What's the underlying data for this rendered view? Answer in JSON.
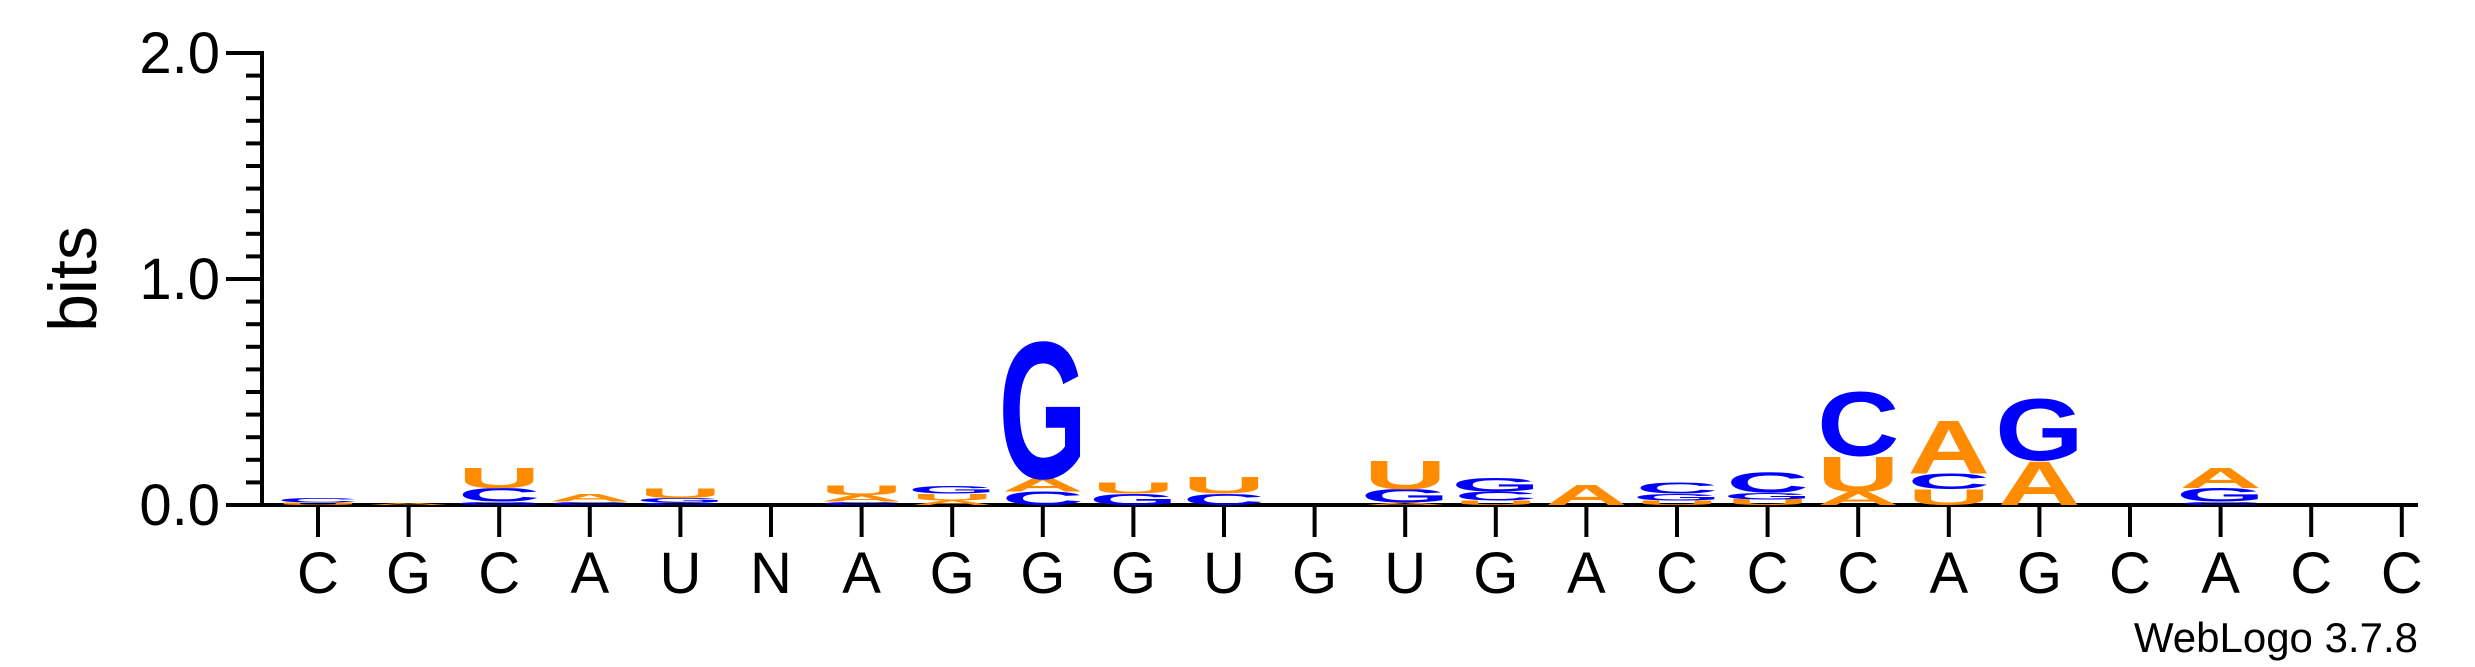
{
  "colors": {
    "A": "#ff8c00",
    "U": "#ff8c00",
    "C": "#0000ff",
    "G": "#0000ff",
    "axis": "#000000"
  },
  "credit": "WebLogo 3.7.8",
  "chart_data": {
    "type": "sequence-logo",
    "ylabel": "bits",
    "ylim": [
      0,
      2
    ],
    "yticks": [
      {
        "value": 0,
        "label": "0.0"
      },
      {
        "value": 1,
        "label": "1.0"
      },
      {
        "value": 2,
        "label": "2.0"
      }
    ],
    "positions": [
      {
        "label": "C",
        "stack": [
          {
            "letter": "U",
            "bits": 0.012
          },
          {
            "letter": "C",
            "bits": 0.02
          }
        ]
      },
      {
        "label": "G",
        "stack": [
          {
            "letter": "A",
            "bits": 0.008
          }
        ]
      },
      {
        "label": "C",
        "stack": [
          {
            "letter": "G",
            "bits": 0.015
          },
          {
            "letter": "C",
            "bits": 0.06
          },
          {
            "letter": "U",
            "bits": 0.09
          }
        ]
      },
      {
        "label": "A",
        "stack": [
          {
            "letter": "C",
            "bits": 0.015
          },
          {
            "letter": "A",
            "bits": 0.035
          }
        ]
      },
      {
        "label": "U",
        "stack": [
          {
            "letter": "C",
            "bits": 0.012
          },
          {
            "letter": "G",
            "bits": 0.02
          },
          {
            "letter": "U",
            "bits": 0.045
          }
        ]
      },
      {
        "label": "N",
        "stack": []
      },
      {
        "label": "A",
        "stack": [
          {
            "letter": "C",
            "bits": 0.015
          },
          {
            "letter": "A",
            "bits": 0.03
          },
          {
            "letter": "U",
            "bits": 0.045
          }
        ]
      },
      {
        "label": "G",
        "stack": [
          {
            "letter": "A",
            "bits": 0.02
          },
          {
            "letter": "U",
            "bits": 0.03
          },
          {
            "letter": "G",
            "bits": 0.035
          }
        ]
      },
      {
        "label": "G",
        "stack": [
          {
            "letter": "C",
            "bits": 0.06
          },
          {
            "letter": "A",
            "bits": 0.06
          },
          {
            "letter": "G",
            "bits": 0.62
          }
        ]
      },
      {
        "label": "G",
        "stack": [
          {
            "letter": "G",
            "bits": 0.05
          },
          {
            "letter": "U",
            "bits": 0.05
          }
        ]
      },
      {
        "label": "U",
        "stack": [
          {
            "letter": "C",
            "bits": 0.05
          },
          {
            "letter": "U",
            "bits": 0.075
          }
        ]
      },
      {
        "label": "G",
        "stack": []
      },
      {
        "label": "U",
        "stack": [
          {
            "letter": "A",
            "bits": 0.01
          },
          {
            "letter": "G",
            "bits": 0.06
          },
          {
            "letter": "U",
            "bits": 0.13
          }
        ]
      },
      {
        "label": "G",
        "stack": [
          {
            "letter": "U",
            "bits": 0.02
          },
          {
            "letter": "C",
            "bits": 0.04
          },
          {
            "letter": "G",
            "bits": 0.06
          }
        ]
      },
      {
        "label": "A",
        "stack": [
          {
            "letter": "A",
            "bits": 0.09
          }
        ]
      },
      {
        "label": "C",
        "stack": [
          {
            "letter": "U",
            "bits": 0.02
          },
          {
            "letter": "G",
            "bits": 0.03
          },
          {
            "letter": "C",
            "bits": 0.05
          }
        ]
      },
      {
        "label": "C",
        "stack": [
          {
            "letter": "U",
            "bits": 0.025
          },
          {
            "letter": "G",
            "bits": 0.03
          },
          {
            "letter": "C",
            "bits": 0.09
          }
        ]
      },
      {
        "label": "C",
        "stack": [
          {
            "letter": "A",
            "bits": 0.06
          },
          {
            "letter": "U",
            "bits": 0.16
          },
          {
            "letter": "C",
            "bits": 0.29
          }
        ]
      },
      {
        "label": "A",
        "stack": [
          {
            "letter": "U",
            "bits": 0.07
          },
          {
            "letter": "C",
            "bits": 0.07
          },
          {
            "letter": "A",
            "bits": 0.24
          }
        ]
      },
      {
        "label": "G",
        "stack": [
          {
            "letter": "A",
            "bits": 0.2
          },
          {
            "letter": "G",
            "bits": 0.28
          }
        ]
      },
      {
        "label": "C",
        "stack": []
      },
      {
        "label": "A",
        "stack": [
          {
            "letter": "C",
            "bits": 0.015
          },
          {
            "letter": "G",
            "bits": 0.06
          },
          {
            "letter": "A",
            "bits": 0.09
          }
        ]
      },
      {
        "label": "C",
        "stack": []
      },
      {
        "label": "C",
        "stack": []
      }
    ]
  }
}
